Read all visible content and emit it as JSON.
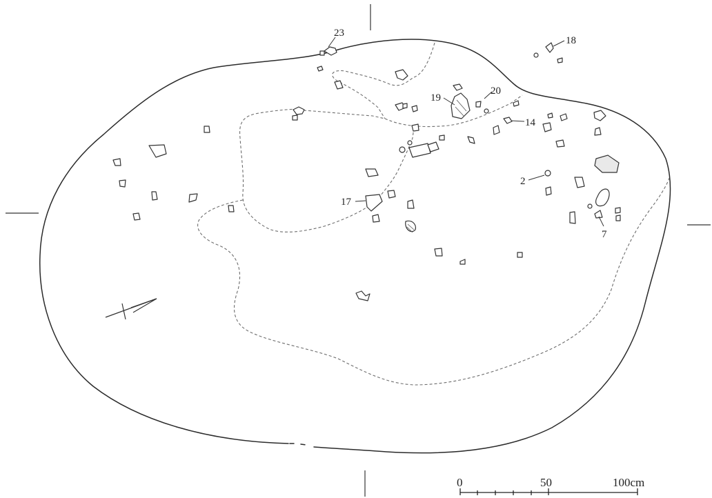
{
  "find_labels": [
    {
      "id": "label-23",
      "text": "23"
    },
    {
      "id": "label-18",
      "text": "18"
    },
    {
      "id": "label-19",
      "text": "19"
    },
    {
      "id": "label-20",
      "text": "20"
    },
    {
      "id": "label-14",
      "text": "14"
    },
    {
      "id": "label-2",
      "text": "2"
    },
    {
      "id": "label-17",
      "text": "17"
    },
    {
      "id": "label-7",
      "text": "7"
    }
  ],
  "scale_bar": {
    "label_0": "0",
    "label_50": "50",
    "label_100": "100cm"
  },
  "north_arrow_icon": "north-arrow-icon"
}
